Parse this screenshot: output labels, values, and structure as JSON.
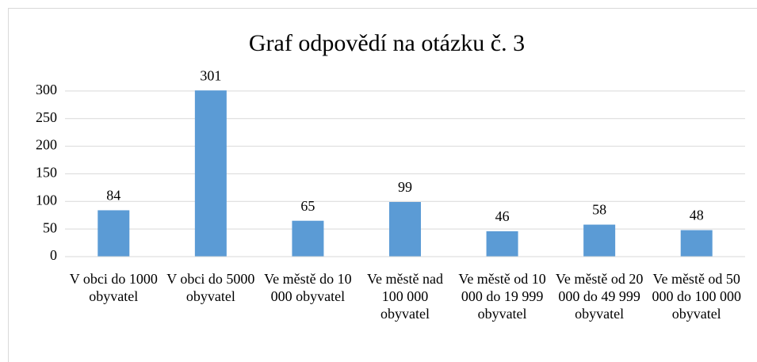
{
  "chart_data": {
    "type": "bar",
    "title": "Graf odpovědí na otázku č. 3",
    "categories": [
      "V obci do 1000 obyvatel",
      "V obci do 5000 obyvatel",
      "Ve městě do 10 000 obyvatel",
      "Ve městě nad 100 000 obyvatel",
      "Ve městě od 10 000 do 19 999 obyvatel",
      "Ve městě od 20 000 do 49 999 obyvatel",
      "Ve městě od 50 000 do 100 000 obyvatel"
    ],
    "values": [
      84,
      301,
      65,
      99,
      46,
      58,
      48
    ],
    "color": "#5b9bd5",
    "ylim": [
      0,
      350
    ],
    "yticks": [
      0,
      50,
      100,
      150,
      200,
      250,
      300
    ],
    "grid": true
  }
}
